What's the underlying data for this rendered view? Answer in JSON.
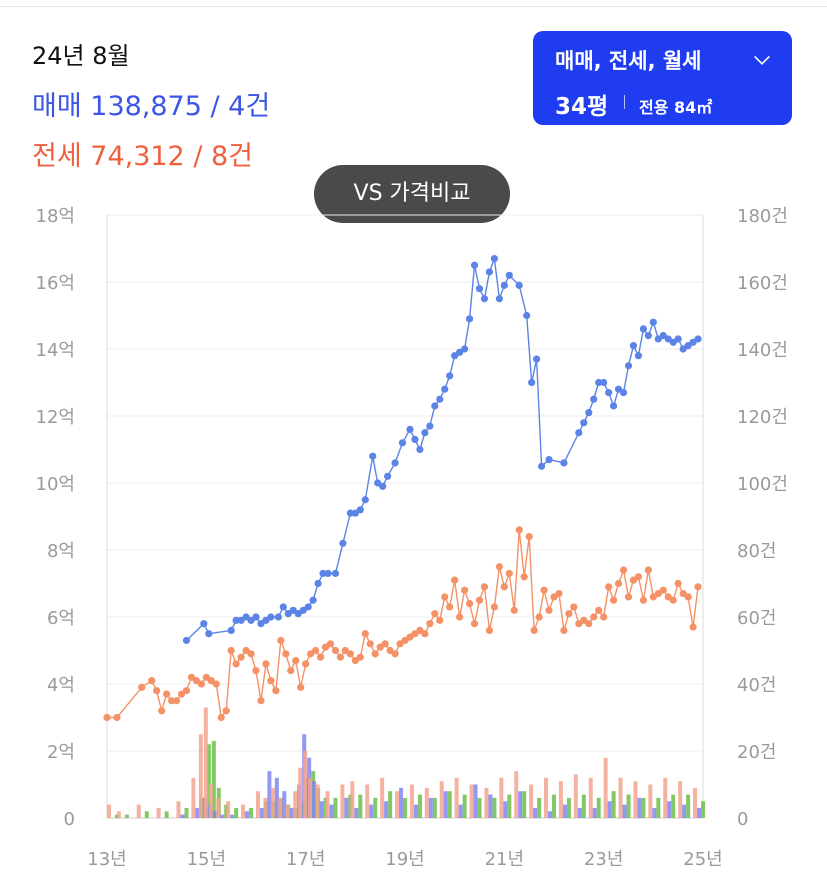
{
  "summary": {
    "period": "24년 8월",
    "sale_text": "매매 138,875 / 4건",
    "jeonse_text": "전세 74,312 / 8건"
  },
  "filter": {
    "types_label": "매매, 전세, 월세",
    "size_label": "34평",
    "area_label": "전용 84㎡"
  },
  "vs_button": {
    "label": "VS 가격비교"
  },
  "colors": {
    "sale": "#5b84e6",
    "jeonse": "#f59166",
    "volume_sale": "#7f86f2",
    "volume_jeonse": "#f5a58f",
    "volume_other": "#6cc04a",
    "accent": "#1f3cf0"
  },
  "chart_data": {
    "type": "line",
    "x_range": [
      2013,
      2025
    ],
    "x_tick_values": [
      2013,
      2015,
      2017,
      2019,
      2021,
      2023,
      2025
    ],
    "x_ticks": [
      "13년",
      "15년",
      "17년",
      "19년",
      "21년",
      "23년",
      "25년"
    ],
    "y_left_range": [
      0,
      18
    ],
    "y_left_ticks": [
      "0",
      "2억",
      "4억",
      "6억",
      "8억",
      "10억",
      "12억",
      "14억",
      "16억",
      "18억"
    ],
    "y_right_range": [
      0,
      180
    ],
    "y_right_ticks": [
      "0",
      "20건",
      "40건",
      "60건",
      "80건",
      "100건",
      "120건",
      "140건",
      "160건",
      "180건"
    ],
    "grid": true,
    "series": [
      {
        "key": "sale",
        "x": [
          2014.6,
          2014.95,
          2015.05,
          2015.5,
          2015.6,
          2015.7,
          2015.8,
          2015.9,
          2016.0,
          2016.1,
          2016.2,
          2016.3,
          2016.45,
          2016.55,
          2016.65,
          2016.75,
          2016.85,
          2016.95,
          2017.05,
          2017.15,
          2017.25,
          2017.35,
          2017.45,
          2017.6,
          2017.75,
          2017.9,
          2018.0,
          2018.1,
          2018.2,
          2018.35,
          2018.45,
          2018.55,
          2018.65,
          2018.8,
          2018.95,
          2019.1,
          2019.2,
          2019.3,
          2019.4,
          2019.5,
          2019.6,
          2019.7,
          2019.8,
          2019.9,
          2020.0,
          2020.1,
          2020.2,
          2020.3,
          2020.4,
          2020.5,
          2020.6,
          2020.7,
          2020.8,
          2020.9,
          2021.0,
          2021.1,
          2021.3,
          2021.45,
          2021.55,
          2021.65,
          2021.75,
          2021.9,
          2022.2,
          2022.5,
          2022.6,
          2022.7,
          2022.8,
          2022.9,
          2023.0,
          2023.1,
          2023.2,
          2023.3,
          2023.4,
          2023.5,
          2023.6,
          2023.7,
          2023.8,
          2023.9,
          2024.0,
          2024.1,
          2024.2,
          2024.3,
          2024.4,
          2024.5,
          2024.6,
          2024.7,
          2024.8,
          2024.9
        ],
        "values": [
          5.3,
          5.8,
          5.5,
          5.6,
          5.9,
          5.9,
          6.0,
          5.9,
          6.0,
          5.8,
          5.9,
          6.0,
          6.0,
          6.3,
          6.1,
          6.2,
          6.1,
          6.2,
          6.3,
          6.5,
          7.0,
          7.3,
          7.3,
          7.3,
          8.2,
          9.1,
          9.1,
          9.2,
          9.5,
          10.8,
          10.0,
          9.9,
          10.2,
          10.6,
          11.2,
          11.6,
          11.3,
          11.0,
          11.5,
          11.7,
          12.3,
          12.5,
          12.8,
          13.2,
          13.8,
          13.9,
          14.0,
          14.9,
          16.5,
          15.8,
          15.5,
          16.3,
          16.7,
          15.5,
          15.9,
          16.2,
          15.9,
          15.0,
          13.0,
          13.7,
          10.5,
          10.7,
          10.6,
          11.5,
          11.8,
          12.1,
          12.5,
          13.0,
          13.0,
          12.7,
          12.3,
          12.8,
          12.7,
          13.5,
          14.1,
          13.8,
          14.6,
          14.4,
          14.8,
          14.3,
          14.4,
          14.3,
          14.2,
          14.3,
          14.0,
          14.1,
          14.2,
          14.3
        ]
      },
      {
        "key": "jeonse",
        "x": [
          2013.0,
          2013.2,
          2013.7,
          2013.9,
          2014.0,
          2014.1,
          2014.2,
          2014.3,
          2014.4,
          2014.5,
          2014.6,
          2014.7,
          2014.8,
          2014.9,
          2015.0,
          2015.1,
          2015.2,
          2015.3,
          2015.4,
          2015.5,
          2015.6,
          2015.7,
          2015.8,
          2015.9,
          2016.0,
          2016.1,
          2016.2,
          2016.3,
          2016.4,
          2016.5,
          2016.6,
          2016.7,
          2016.8,
          2016.9,
          2017.0,
          2017.1,
          2017.2,
          2017.3,
          2017.4,
          2017.5,
          2017.6,
          2017.7,
          2017.8,
          2017.9,
          2018.0,
          2018.1,
          2018.2,
          2018.3,
          2018.4,
          2018.5,
          2018.6,
          2018.7,
          2018.8,
          2018.9,
          2019.0,
          2019.1,
          2019.2,
          2019.3,
          2019.4,
          2019.5,
          2019.6,
          2019.7,
          2019.8,
          2019.9,
          2020.0,
          2020.1,
          2020.2,
          2020.3,
          2020.4,
          2020.5,
          2020.6,
          2020.7,
          2020.8,
          2020.9,
          2021.0,
          2021.1,
          2021.2,
          2021.3,
          2021.4,
          2021.5,
          2021.6,
          2021.7,
          2021.8,
          2021.9,
          2022.0,
          2022.1,
          2022.2,
          2022.3,
          2022.4,
          2022.5,
          2022.6,
          2022.7,
          2022.8,
          2022.9,
          2023.0,
          2023.1,
          2023.2,
          2023.3,
          2023.4,
          2023.5,
          2023.6,
          2023.7,
          2023.8,
          2023.9,
          2024.0,
          2024.1,
          2024.2,
          2024.3,
          2024.4,
          2024.5,
          2024.6,
          2024.7,
          2024.8,
          2024.9
        ],
        "values": [
          3.0,
          3.0,
          3.9,
          4.1,
          3.8,
          3.2,
          3.7,
          3.5,
          3.5,
          3.7,
          3.8,
          4.2,
          4.1,
          4.0,
          4.2,
          4.1,
          4.0,
          3.0,
          3.2,
          5.0,
          4.6,
          4.8,
          5.0,
          4.9,
          4.4,
          3.5,
          4.6,
          4.1,
          3.8,
          5.3,
          4.9,
          4.4,
          4.7,
          3.9,
          4.6,
          4.9,
          5.0,
          4.8,
          5.1,
          5.2,
          5.0,
          4.8,
          5.0,
          4.9,
          4.7,
          4.8,
          5.5,
          5.2,
          4.9,
          5.1,
          5.2,
          5.0,
          4.9,
          5.2,
          5.3,
          5.4,
          5.5,
          5.6,
          5.5,
          5.8,
          6.1,
          5.9,
          6.6,
          6.3,
          7.1,
          6.0,
          6.8,
          6.4,
          5.8,
          6.5,
          6.9,
          5.6,
          6.3,
          7.5,
          6.9,
          7.3,
          6.2,
          8.6,
          7.2,
          8.4,
          5.6,
          6.0,
          6.8,
          6.2,
          6.6,
          6.7,
          5.6,
          6.1,
          6.3,
          5.8,
          5.9,
          5.8,
          6.0,
          6.2,
          6.0,
          6.9,
          6.5,
          7.0,
          7.4,
          6.6,
          7.1,
          7.2,
          6.5,
          7.4,
          6.6,
          6.7,
          6.8,
          6.6,
          6.5,
          7.0,
          6.7,
          6.6,
          5.7,
          6.9
        ]
      }
    ],
    "volume_bars": {
      "x": [
        2013.1,
        2013.3,
        2013.7,
        2014.1,
        2014.5,
        2014.8,
        2014.95,
        2015.05,
        2015.15,
        2015.3,
        2015.5,
        2015.8,
        2016.1,
        2016.25,
        2016.4,
        2016.55,
        2016.7,
        2016.85,
        2016.95,
        2017.05,
        2017.15,
        2017.3,
        2017.5,
        2017.8,
        2018.0,
        2018.3,
        2018.6,
        2018.9,
        2019.2,
        2019.5,
        2019.8,
        2020.1,
        2020.4,
        2020.7,
        2021.0,
        2021.3,
        2021.6,
        2021.9,
        2022.2,
        2022.5,
        2022.8,
        2023.1,
        2023.4,
        2023.7,
        2024.0,
        2024.3,
        2024.6,
        2024.9
      ],
      "sale": [
        0,
        0,
        0,
        0,
        1,
        3,
        6,
        4,
        2,
        1,
        1,
        2,
        3,
        14,
        12,
        8,
        3,
        10,
        25,
        18,
        11,
        5,
        4,
        6,
        3,
        4,
        5,
        9,
        4,
        6,
        8,
        4,
        10,
        7,
        5,
        8,
        3,
        2,
        4,
        3,
        3,
        5,
        4,
        6,
        3,
        5,
        4,
        3
      ],
      "jeonse": [
        4,
        2,
        4,
        3,
        5,
        12,
        25,
        33,
        10,
        6,
        5,
        4,
        8,
        6,
        9,
        6,
        4,
        8,
        15,
        20,
        12,
        10,
        8,
        10,
        11,
        10,
        12,
        8,
        10,
        9,
        11,
        12,
        10,
        9,
        12,
        14,
        10,
        12,
        11,
        13,
        12,
        18,
        12,
        11,
        10,
        12,
        11,
        9
      ],
      "other": [
        1,
        1,
        2,
        2,
        3,
        6,
        22,
        23,
        9,
        4,
        3,
        3,
        5,
        5,
        6,
        4,
        3,
        5,
        12,
        14,
        9,
        6,
        6,
        7,
        7,
        6,
        8,
        6,
        7,
        6,
        8,
        7,
        6,
        6,
        7,
        8,
        6,
        7,
        6,
        7,
        6,
        8,
        7,
        6,
        6,
        7,
        7,
        5
      ]
    }
  }
}
